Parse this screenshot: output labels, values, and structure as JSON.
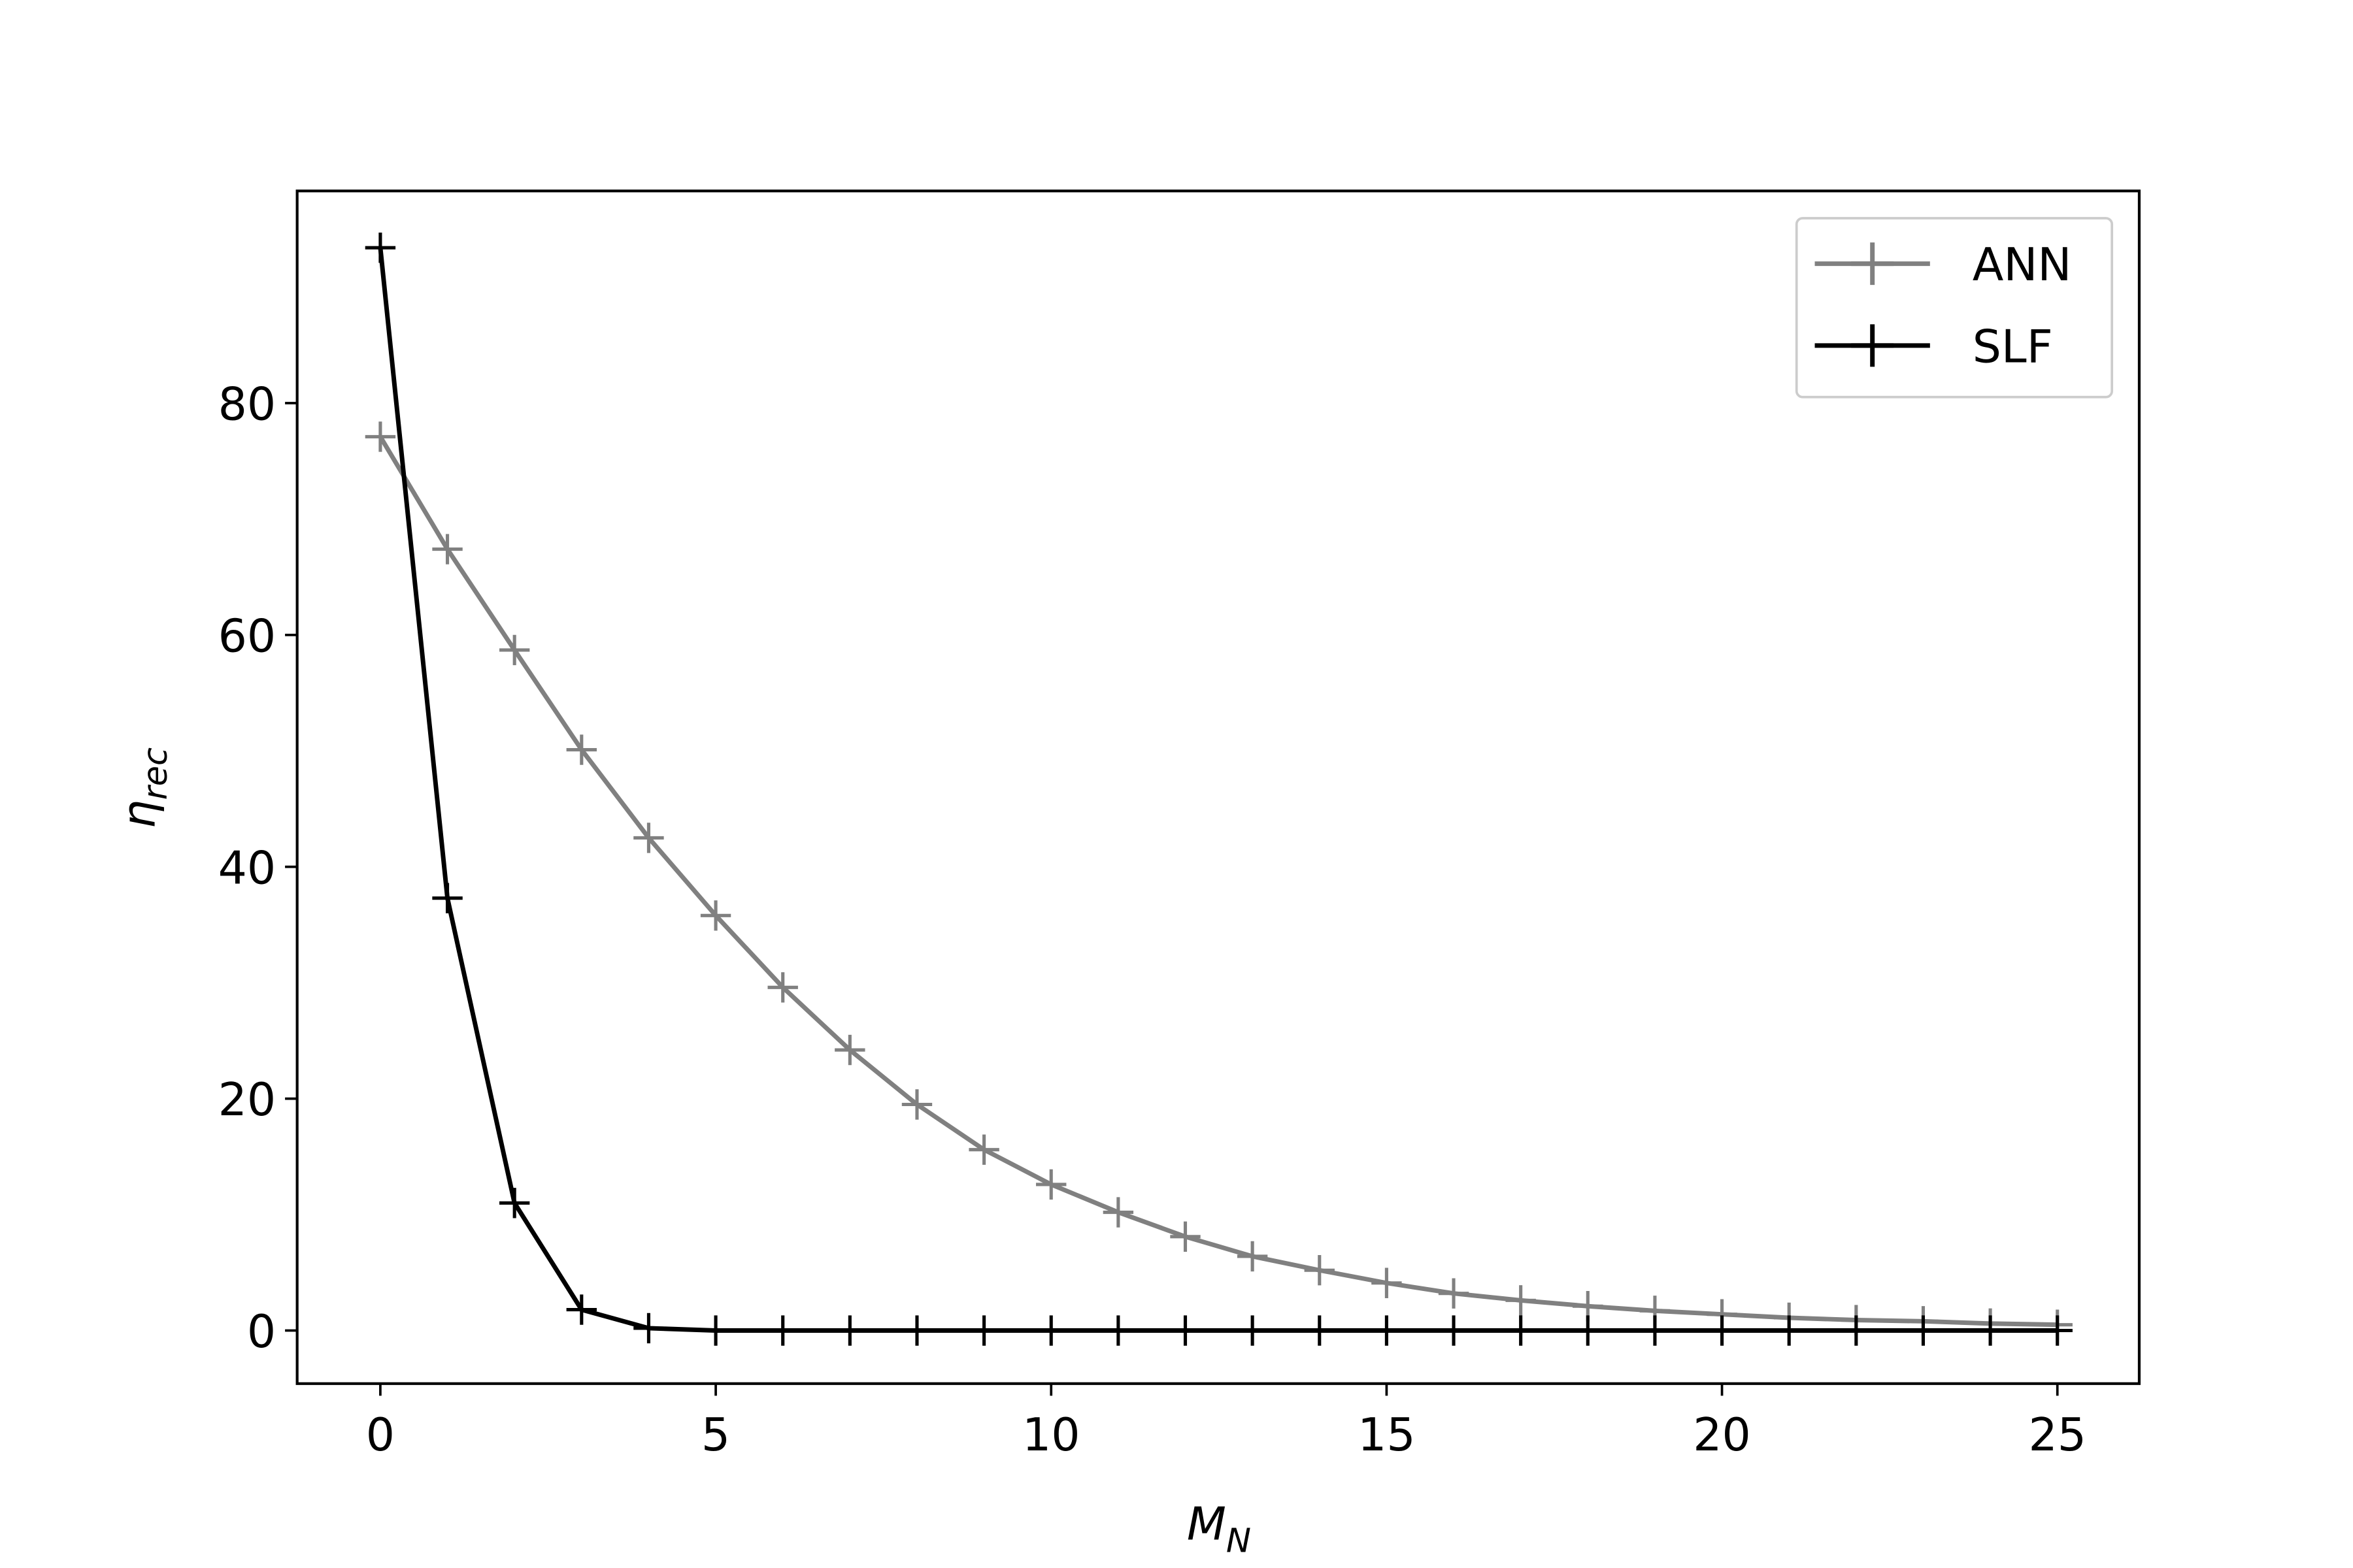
{
  "chart_data": {
    "type": "line",
    "xlabel": [
      "M",
      "N"
    ],
    "ylabel": [
      "η",
      "rec"
    ],
    "x": [
      0,
      1,
      2,
      3,
      4,
      5,
      6,
      7,
      8,
      9,
      10,
      11,
      12,
      13,
      14,
      15,
      16,
      17,
      18,
      19,
      20,
      21,
      22,
      23,
      24,
      25
    ],
    "series": [
      {
        "name": "ANN",
        "color": "#808080",
        "values": [
          77.1,
          67.4,
          58.7,
          50.1,
          42.5,
          35.8,
          29.6,
          24.2,
          19.5,
          15.6,
          12.6,
          10.2,
          8.1,
          6.4,
          5.2,
          4.1,
          3.2,
          2.6,
          2.1,
          1.7,
          1.4,
          1.1,
          0.9,
          0.8,
          0.6,
          0.5
        ]
      },
      {
        "name": "SLF",
        "color": "#000000",
        "values": [
          93.4,
          37.3,
          11.0,
          1.8,
          0.2,
          0,
          0,
          0,
          0,
          0,
          0,
          0,
          0,
          0,
          0,
          0,
          0,
          0,
          0,
          0,
          0,
          0,
          0,
          0,
          0,
          0
        ]
      }
    ],
    "xlim": [
      -1.24,
      26.22
    ],
    "xticks": [
      0,
      5,
      10,
      15,
      20,
      25
    ],
    "ylim": [
      -4.58,
      98.3
    ],
    "yticks": [
      0,
      20,
      40,
      60,
      80
    ],
    "legend": "upper right",
    "marker": "+"
  }
}
